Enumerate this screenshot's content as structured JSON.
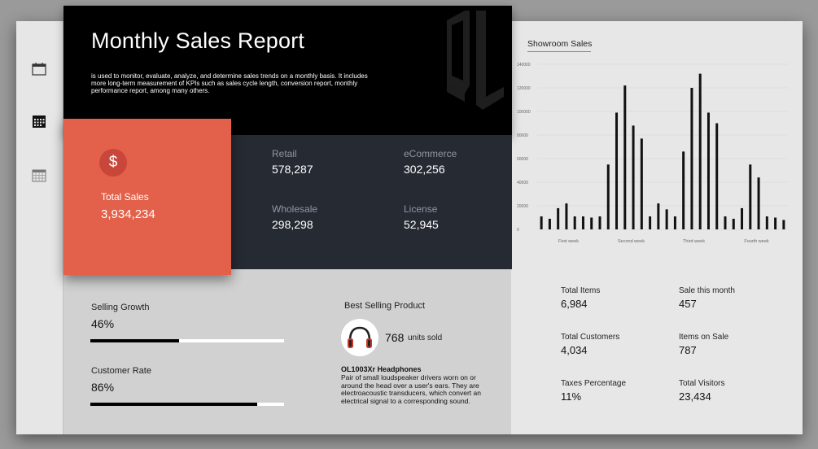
{
  "header": {
    "title": "Monthly Sales Report",
    "description": "is used to monitor, evaluate, analyze, and determine sales trends on a monthly basis. It includes more long-term measurement of KPIs such as sales cycle length, conversion report, monthly performance report, among many others."
  },
  "sidebar": {
    "items": [
      {
        "icon": "calendar-outline-icon"
      },
      {
        "icon": "calendar-filled-icon"
      },
      {
        "icon": "calendar-grid-icon"
      }
    ]
  },
  "total_sales": {
    "icon": "dollar-icon",
    "symbol": "$",
    "label": "Total Sales",
    "value": "3,934,234"
  },
  "channels": {
    "retail": {
      "label": "Retail",
      "value": "578,287"
    },
    "ecommerce": {
      "label": "eCommerce",
      "value": "302,256"
    },
    "wholesale": {
      "label": "Wholesale",
      "value": "298,298"
    },
    "license": {
      "label": "License",
      "value": "52,945"
    }
  },
  "selling_growth": {
    "label": "Selling Growth",
    "value": "46%",
    "fraction": 0.46
  },
  "customer_rate": {
    "label": "Customer Rate",
    "value": "86%",
    "fraction": 0.86
  },
  "best_selling": {
    "label": "Best Selling Product",
    "icon": "headphones-icon",
    "units": "768",
    "units_label": "units sold",
    "product_name": "OL1003Xr Headphones",
    "product_desc": "Pair of small loudspeaker drivers worn on or around the head over a user's ears. They are electroacoustic transducers, which convert an electrical signal to a corresponding sound."
  },
  "showroom": {
    "title": "Showroom Sales"
  },
  "chart_data": {
    "type": "bar",
    "title": "Showroom Sales",
    "ylim": [
      0,
      140000
    ],
    "yticks": [
      "0",
      "20000",
      "40000",
      "60000",
      "80000",
      "100000",
      "120000",
      "140000"
    ],
    "xgroups": [
      "First week",
      "Second week",
      "Third week",
      "Fourth week"
    ],
    "values": [
      11000,
      9000,
      18000,
      22000,
      11000,
      11000,
      10000,
      11000,
      55000,
      99000,
      122000,
      88000,
      77000,
      11000,
      22000,
      17000,
      11000,
      66000,
      120000,
      132000,
      99000,
      90000,
      11000,
      9000,
      18000,
      55000,
      44000,
      11000,
      10000,
      8000
    ],
    "grid": true,
    "accent": "#e3614a"
  },
  "stats": [
    {
      "label": "Total Items",
      "value": "6,984"
    },
    {
      "label": "Sale this month",
      "value": "457"
    },
    {
      "label": "Total Customers",
      "value": "4,034"
    },
    {
      "label": "Items on Sale",
      "value": "787"
    },
    {
      "label": "Taxes Percentage",
      "value": "11%"
    },
    {
      "label": "Total Visitors",
      "value": "23,434"
    }
  ],
  "colors": {
    "accent": "#e3614a",
    "dark": "#262a33",
    "black": "#000000"
  }
}
